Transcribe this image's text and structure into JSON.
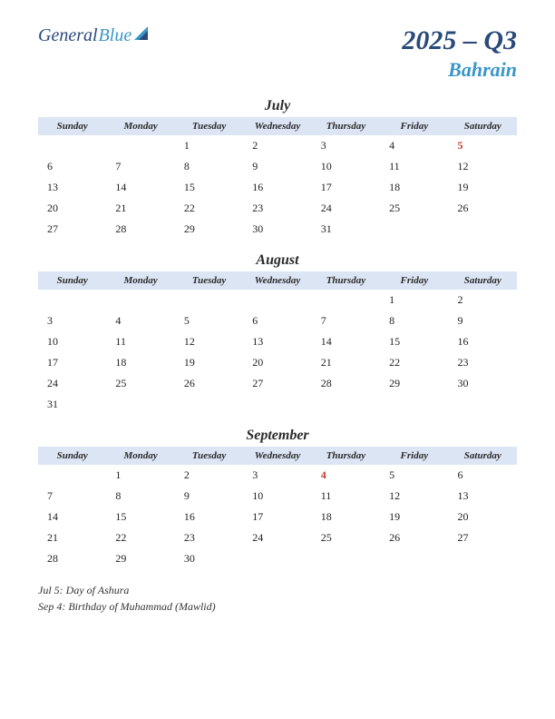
{
  "logo": {
    "part1": "General",
    "part2": "Blue"
  },
  "title": {
    "period": "2025 – Q3",
    "country": "Bahrain"
  },
  "colors": {
    "header_bg": "#dbe5f4",
    "logo_dark": "#2a4a7a",
    "logo_light": "#3a96c8",
    "holiday_text": "#c0392b"
  },
  "day_headers": [
    "Sunday",
    "Monday",
    "Tuesday",
    "Wednesday",
    "Thursday",
    "Friday",
    "Saturday"
  ],
  "months": [
    {
      "name": "July",
      "weeks": [
        [
          "",
          "",
          "1",
          "2",
          "3",
          "4",
          "5"
        ],
        [
          "6",
          "7",
          "8",
          "9",
          "10",
          "11",
          "12"
        ],
        [
          "13",
          "14",
          "15",
          "16",
          "17",
          "18",
          "19"
        ],
        [
          "20",
          "21",
          "22",
          "23",
          "24",
          "25",
          "26"
        ],
        [
          "27",
          "28",
          "29",
          "30",
          "31",
          "",
          ""
        ]
      ],
      "holidays": [
        "5"
      ]
    },
    {
      "name": "August",
      "weeks": [
        [
          "",
          "",
          "",
          "",
          "",
          "1",
          "2"
        ],
        [
          "3",
          "4",
          "5",
          "6",
          "7",
          "8",
          "9"
        ],
        [
          "10",
          "11",
          "12",
          "13",
          "14",
          "15",
          "16"
        ],
        [
          "17",
          "18",
          "19",
          "20",
          "21",
          "22",
          "23"
        ],
        [
          "24",
          "25",
          "26",
          "27",
          "28",
          "29",
          "30"
        ],
        [
          "31",
          "",
          "",
          "",
          "",
          "",
          ""
        ]
      ],
      "holidays": []
    },
    {
      "name": "September",
      "weeks": [
        [
          "",
          "1",
          "2",
          "3",
          "4",
          "5",
          "6"
        ],
        [
          "7",
          "8",
          "9",
          "10",
          "11",
          "12",
          "13"
        ],
        [
          "14",
          "15",
          "16",
          "17",
          "18",
          "19",
          "20"
        ],
        [
          "21",
          "22",
          "23",
          "24",
          "25",
          "26",
          "27"
        ],
        [
          "28",
          "29",
          "30",
          "",
          "",
          "",
          ""
        ]
      ],
      "holidays": [
        "4"
      ]
    }
  ],
  "holiday_list": [
    "Jul 5: Day of Ashura",
    "Sep 4: Birthday of Muhammad (Mawlid)"
  ]
}
